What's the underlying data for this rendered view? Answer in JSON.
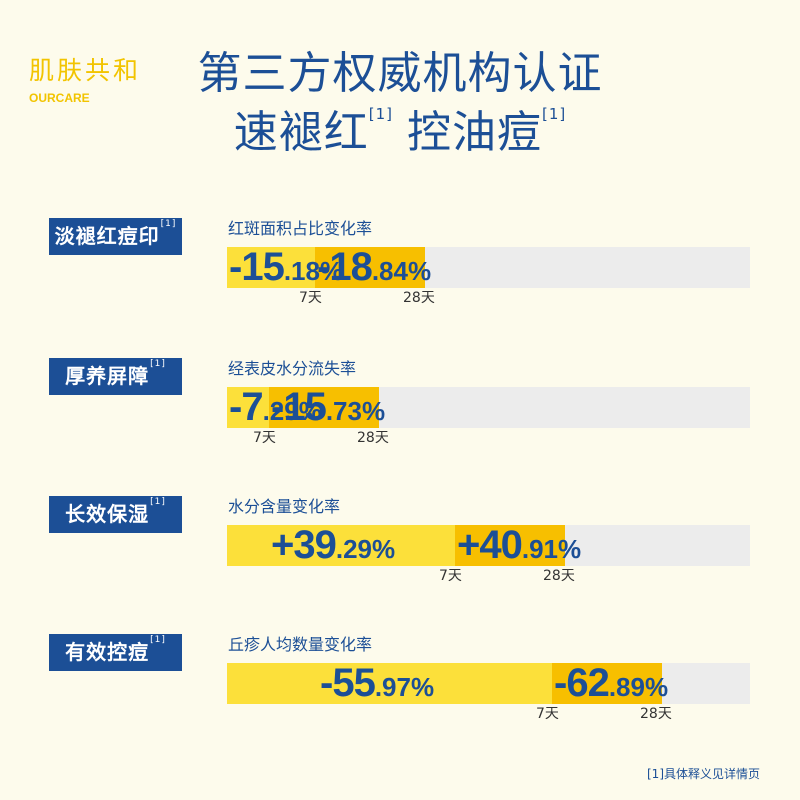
{
  "brand": {
    "name_cn": "肌肤共和",
    "name_en": "OURCARE"
  },
  "title": {
    "line1": "第三方权威机构认证",
    "line2_a": "速褪红",
    "line2_a_note": "[1]",
    "line2_b": "控油痘",
    "line2_b_note": "[1]"
  },
  "colors": {
    "primary_blue": "#1c4f96",
    "bar_7d": "#fce03a",
    "bar_28d": "#f7bf00",
    "track": "#ececec",
    "background": "#fdfbec"
  },
  "chart_data": [
    {
      "type": "bar",
      "label": "淡褪红痘印",
      "note": "[1]",
      "title": "红斑面积占比变化率",
      "categories": [
        "7天",
        "28天"
      ],
      "values": [
        -15.18,
        -18.84
      ],
      "display": [
        {
          "int": "-15",
          "dec": ".18%"
        },
        {
          "int": "-18",
          "dec": ".84%"
        }
      ]
    },
    {
      "type": "bar",
      "label": "厚养屏障",
      "note": "[1]",
      "title": "经表皮水分流失率",
      "categories": [
        "7天",
        "28天"
      ],
      "values": [
        -7.29,
        -15.73
      ],
      "display": [
        {
          "int": "-7",
          "dec": ".29%"
        },
        {
          "int": "-15",
          "dec": ".73%"
        }
      ]
    },
    {
      "type": "bar",
      "label": "长效保湿",
      "note": "[1]",
      "title": "水分含量变化率",
      "categories": [
        "7天",
        "28天"
      ],
      "values": [
        39.29,
        40.91
      ],
      "display": [
        {
          "int": "+39",
          "dec": ".29%"
        },
        {
          "int": "+40",
          "dec": ".91%"
        }
      ]
    },
    {
      "type": "bar",
      "label": "有效控痘",
      "note": "[1]",
      "title": "丘疹人均数量变化率",
      "categories": [
        "7天",
        "28天"
      ],
      "values": [
        -55.97,
        -62.89
      ],
      "display": [
        {
          "int": "-55",
          "dec": ".97%"
        },
        {
          "int": "-62",
          "dec": ".89%"
        }
      ]
    }
  ],
  "footnote": "[1]具体释义见详情页"
}
